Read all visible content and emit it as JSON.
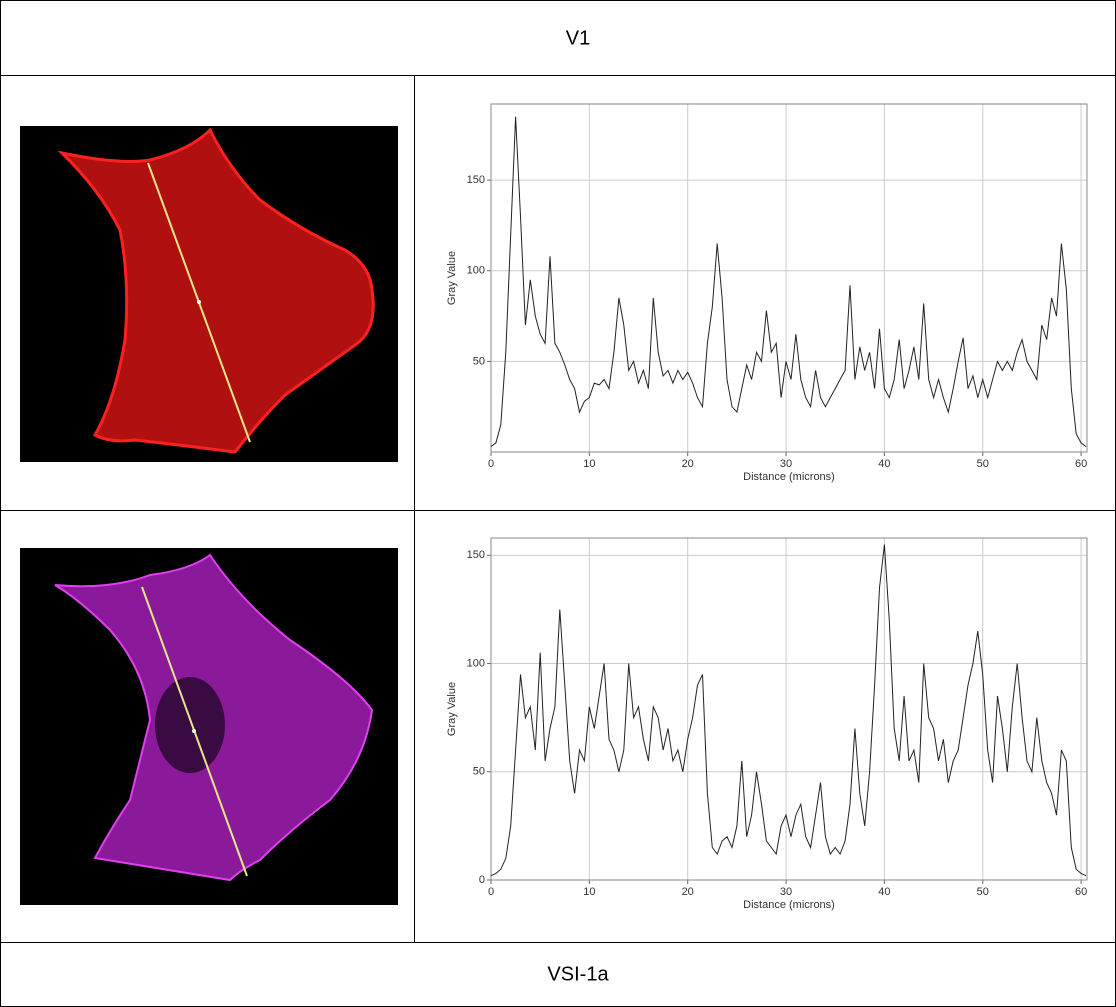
{
  "table": {
    "header": "V1",
    "footer": "VSI-1a"
  },
  "chart_data": [
    {
      "type": "line",
      "y_label": "Gray Value",
      "x_label": "Distance (microns)",
      "color": "#222",
      "xlim": [
        0,
        60.6
      ],
      "xticks": [
        0,
        10,
        20,
        30,
        40,
        50,
        60
      ],
      "ylim": [
        0,
        192
      ],
      "yticks": [
        50,
        100,
        150
      ],
      "grid": true,
      "x": [
        0,
        0.5,
        1,
        1.5,
        2,
        2.5,
        3,
        3.5,
        4,
        4.5,
        5,
        5.5,
        6,
        6.5,
        7,
        7.5,
        8,
        8.5,
        9,
        9.5,
        10,
        10.5,
        11,
        11.5,
        12,
        12.5,
        13,
        13.5,
        14,
        14.5,
        15,
        15.5,
        16,
        16.5,
        17,
        17.5,
        18,
        18.5,
        19,
        19.5,
        20,
        20.5,
        21,
        21.5,
        22,
        22.5,
        23,
        23.5,
        24,
        24.5,
        25,
        25.5,
        26,
        26.5,
        27,
        27.5,
        28,
        28.5,
        29,
        29.5,
        30,
        30.5,
        31,
        31.5,
        32,
        32.5,
        33,
        33.5,
        34,
        34.5,
        35,
        35.5,
        36,
        36.5,
        37,
        37.5,
        38,
        38.5,
        39,
        39.5,
        40,
        40.5,
        41,
        41.5,
        42,
        42.5,
        43,
        43.5,
        44,
        44.5,
        45,
        45.5,
        46,
        46.5,
        47,
        47.5,
        48,
        48.5,
        49,
        49.5,
        50,
        50.5,
        51,
        51.5,
        52,
        52.5,
        53,
        53.5,
        54,
        54.5,
        55,
        55.5,
        56,
        56.5,
        57,
        57.5,
        58,
        58.5,
        59,
        59.5,
        60,
        60.5
      ],
      "values": [
        3,
        5,
        15,
        55,
        120,
        185,
        130,
        70,
        95,
        75,
        65,
        60,
        108,
        60,
        55,
        48,
        40,
        35,
        22,
        28,
        30,
        38,
        37,
        40,
        35,
        55,
        85,
        70,
        45,
        50,
        38,
        45,
        35,
        85,
        55,
        42,
        45,
        38,
        45,
        40,
        44,
        38,
        30,
        25,
        60,
        80,
        115,
        85,
        40,
        25,
        22,
        35,
        48,
        40,
        55,
        50,
        78,
        55,
        60,
        30,
        50,
        40,
        65,
        40,
        30,
        25,
        45,
        30,
        25,
        30,
        35,
        40,
        45,
        92,
        40,
        58,
        45,
        55,
        35,
        68,
        35,
        30,
        40,
        62,
        35,
        45,
        58,
        40,
        82,
        40,
        30,
        40,
        30,
        22,
        35,
        50,
        63,
        35,
        42,
        30,
        40,
        30,
        40,
        50,
        45,
        50,
        45,
        55,
        62,
        50,
        45,
        40,
        70,
        62,
        85,
        75,
        115,
        90,
        35,
        10,
        5,
        3
      ]
    },
    {
      "type": "line",
      "y_label": "Gray Value",
      "x_label": "Distance (microns)",
      "color": "#222",
      "xlim": [
        0,
        60.6
      ],
      "xticks": [
        0,
        10,
        20,
        30,
        40,
        50,
        60
      ],
      "ylim": [
        0,
        158
      ],
      "yticks": [
        0,
        50,
        100,
        150
      ],
      "grid": true,
      "x": [
        0,
        0.5,
        1,
        1.5,
        2,
        2.5,
        3,
        3.5,
        4,
        4.5,
        5,
        5.5,
        6,
        6.5,
        7,
        7.5,
        8,
        8.5,
        9,
        9.5,
        10,
        10.5,
        11,
        11.5,
        12,
        12.5,
        13,
        13.5,
        14,
        14.5,
        15,
        15.5,
        16,
        16.5,
        17,
        17.5,
        18,
        18.5,
        19,
        19.5,
        20,
        20.5,
        21,
        21.5,
        22,
        22.5,
        23,
        23.5,
        24,
        24.5,
        25,
        25.5,
        26,
        26.5,
        27,
        27.5,
        28,
        28.5,
        29,
        29.5,
        30,
        30.5,
        31,
        31.5,
        32,
        32.5,
        33,
        33.5,
        34,
        34.5,
        35,
        35.5,
        36,
        36.5,
        37,
        37.5,
        38,
        38.5,
        39,
        39.5,
        40,
        40.5,
        41,
        41.5,
        42,
        42.5,
        43,
        43.5,
        44,
        44.5,
        45,
        45.5,
        46,
        46.5,
        47,
        47.5,
        48,
        48.5,
        49,
        49.5,
        50,
        50.5,
        51,
        51.5,
        52,
        52.5,
        53,
        53.5,
        54,
        54.5,
        55,
        55.5,
        56,
        56.5,
        57,
        57.5,
        58,
        58.5,
        59,
        59.5,
        60,
        60.5
      ],
      "values": [
        2,
        3,
        5,
        10,
        25,
        60,
        95,
        75,
        80,
        60,
        105,
        55,
        70,
        80,
        125,
        90,
        55,
        40,
        60,
        55,
        80,
        70,
        85,
        100,
        65,
        60,
        50,
        60,
        100,
        75,
        80,
        65,
        55,
        80,
        75,
        60,
        70,
        55,
        60,
        50,
        65,
        75,
        90,
        95,
        40,
        15,
        12,
        18,
        20,
        15,
        25,
        55,
        20,
        30,
        50,
        35,
        18,
        15,
        12,
        25,
        30,
        20,
        30,
        35,
        20,
        15,
        30,
        45,
        20,
        12,
        15,
        12,
        18,
        35,
        70,
        40,
        25,
        50,
        90,
        135,
        155,
        120,
        70,
        55,
        85,
        55,
        60,
        45,
        100,
        75,
        70,
        55,
        65,
        45,
        55,
        60,
        75,
        90,
        100,
        115,
        95,
        60,
        45,
        85,
        70,
        50,
        80,
        100,
        75,
        55,
        50,
        75,
        55,
        45,
        40,
        30,
        60,
        55,
        15,
        5,
        3,
        2
      ]
    }
  ]
}
